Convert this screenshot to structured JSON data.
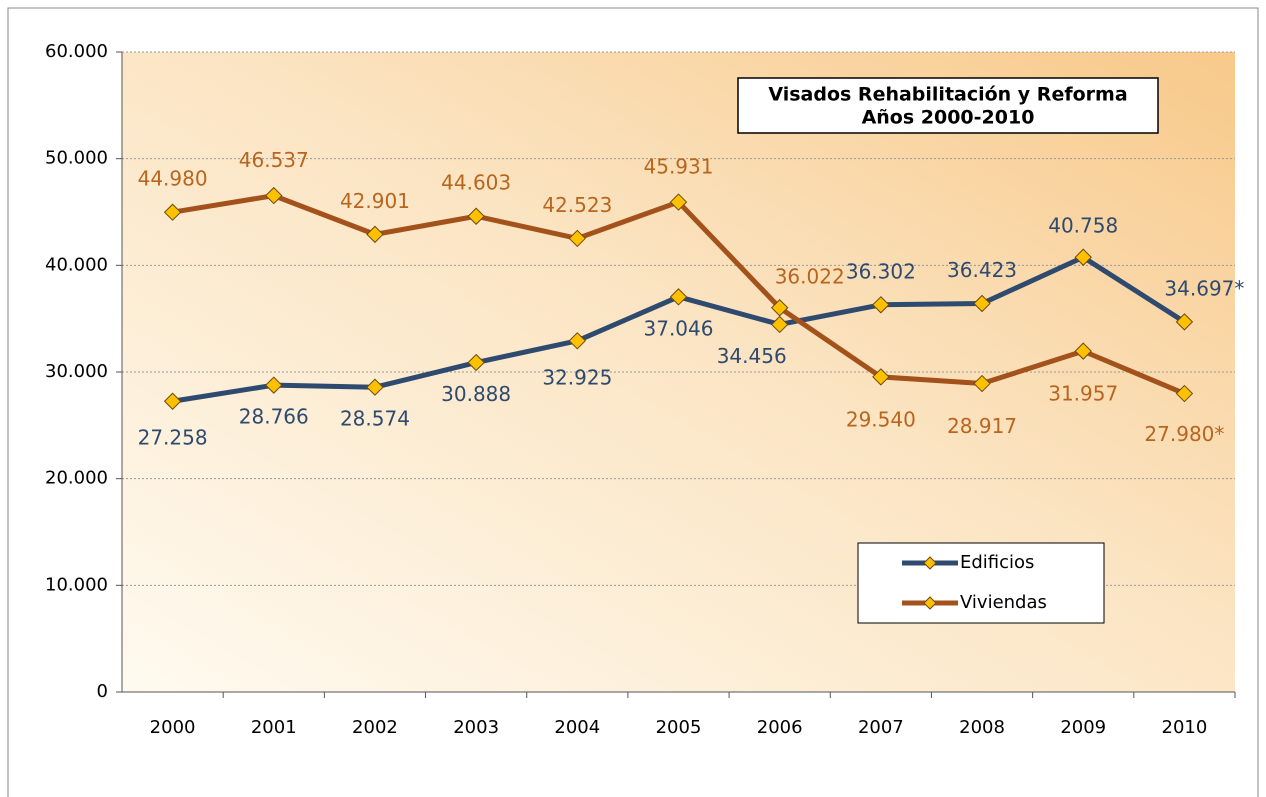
{
  "chart_data": {
    "type": "line",
    "title": "Visados Rehabilitación y Reforma",
    "subtitle": "Años 2000-2010",
    "categories": [
      "2000",
      "2001",
      "2002",
      "2003",
      "2004",
      "2005",
      "2006",
      "2007",
      "2008",
      "2009",
      "2010"
    ],
    "series": [
      {
        "name": "Edificios",
        "color": "#2e4a6e",
        "values": [
          27258,
          28766,
          28574,
          30888,
          32925,
          37046,
          34456,
          36302,
          36423,
          40758,
          34697
        ],
        "value_labels": [
          "27.258",
          "28.766",
          "28.574",
          "30.888",
          "32.925",
          "37.046",
          "34.456",
          "36.302",
          "36.423",
          "40.758",
          "34.697*"
        ]
      },
      {
        "name": "Viviendas",
        "color": "#a3521c",
        "values": [
          44980,
          46537,
          42901,
          44603,
          42523,
          45931,
          36022,
          29540,
          28917,
          31957,
          27980
        ],
        "value_labels": [
          "44.980",
          "46.537",
          "42.901",
          "44.603",
          "42.523",
          "45.931",
          "36.022",
          "29.540",
          "28.917",
          "31.957",
          "27.980*"
        ]
      }
    ],
    "ylim": [
      0,
      60000
    ],
    "yticks": [
      0,
      {
        "value": 10000,
        "label": "10.000"
      },
      {
        "value": 20000,
        "label": "20.000"
      },
      {
        "value": 30000,
        "label": "30.000"
      },
      {
        "value": 40000,
        "label": "40.000"
      },
      {
        "value": 50000,
        "label": "50.000"
      },
      {
        "value": 60000,
        "label": "60.000"
      }
    ],
    "grid": true,
    "marker_color": "#ffc000"
  }
}
